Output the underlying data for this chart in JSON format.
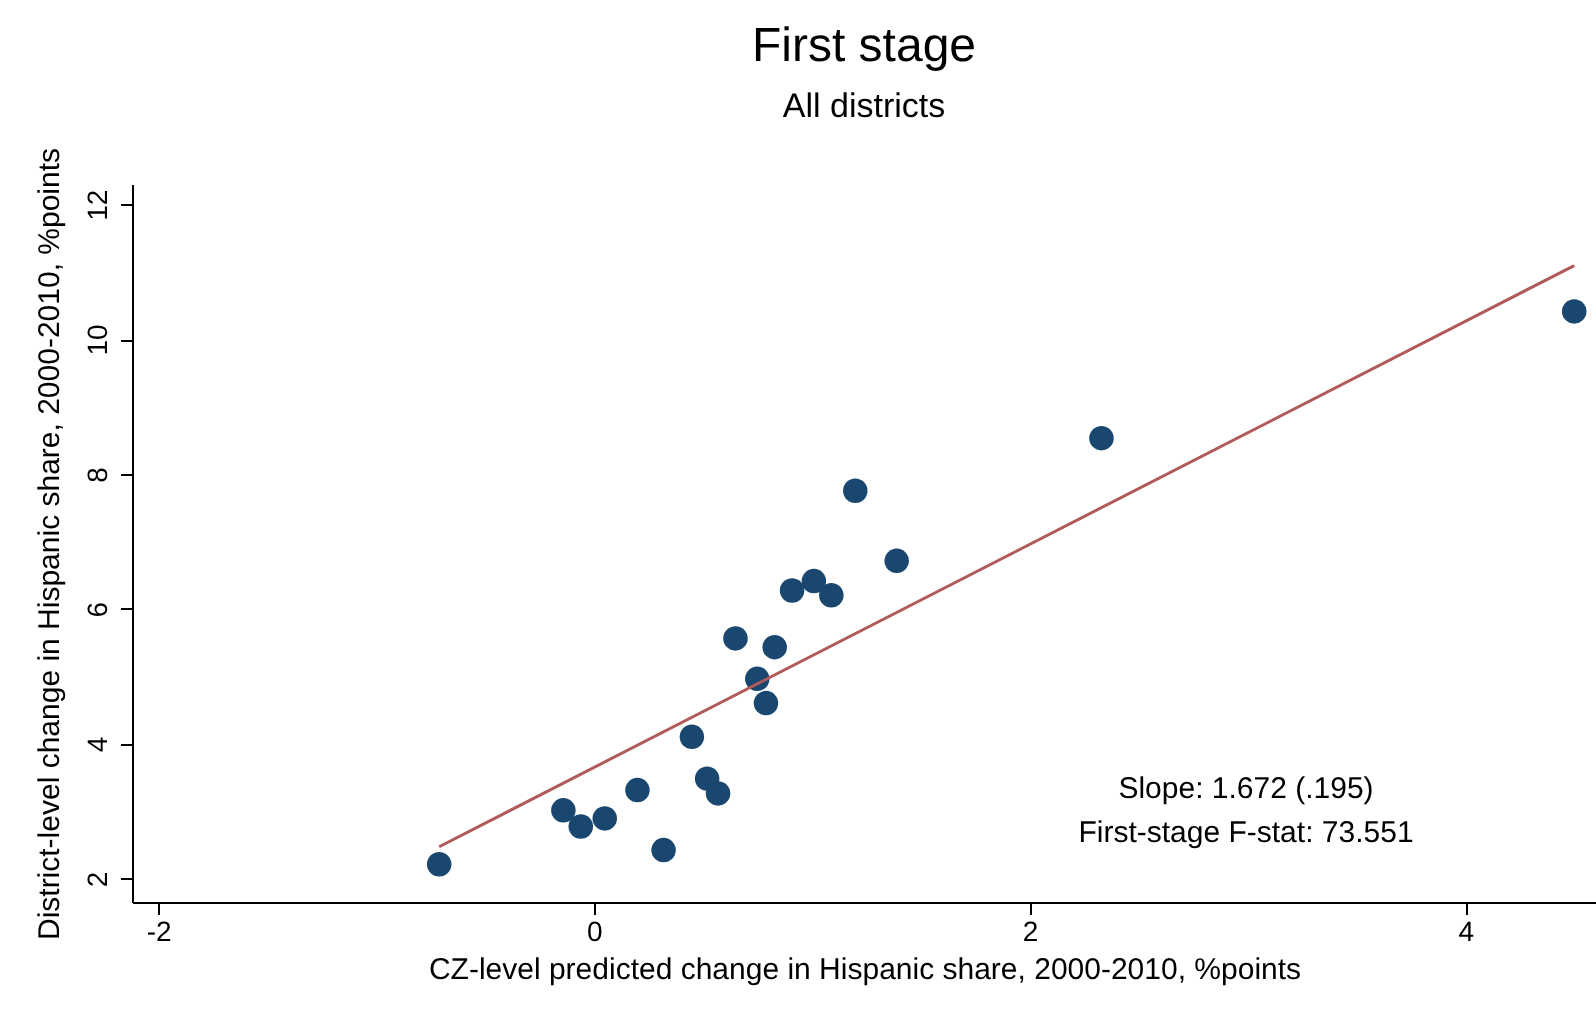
{
  "chart_data": {
    "type": "scatter",
    "title": "First stage",
    "subtitle": "All districts",
    "xlabel": "CZ-level predicted change in Hispanic share, 2000-2010, %points",
    "ylabel": "District-level change in Hispanic share, 2000-2010, %points",
    "xlim": [
      -2.12,
      4.6
    ],
    "ylim": [
      1.65,
      12.3
    ],
    "xticks": [
      -2,
      0,
      2,
      4
    ],
    "yticks": [
      2,
      4,
      6,
      8,
      10,
      12
    ],
    "grid": false,
    "annotations": [
      "Slope: 1.672 (.195)",
      "First-stage F-stat: 73.551"
    ],
    "series": [
      {
        "color": "#1a476f",
        "marker": "circle",
        "x": [
          -0.71,
          -0.14,
          -0.06,
          0.05,
          0.2,
          0.32,
          0.45,
          0.52,
          0.57,
          0.65,
          0.75,
          0.79,
          0.83,
          0.91,
          1.01,
          1.09,
          1.2,
          1.39,
          2.33,
          4.5
        ],
        "values": [
          2.21,
          3.01,
          2.77,
          2.89,
          3.31,
          2.42,
          4.1,
          3.48,
          3.26,
          5.56,
          4.96,
          4.6,
          5.43,
          6.27,
          6.41,
          6.2,
          7.75,
          6.71,
          8.53,
          10.41
        ]
      },
      {
        "type": "line",
        "color": "#b05a5a",
        "x": [
          -0.71,
          4.5
        ],
        "values": [
          2.47,
          11.09
        ],
        "line_style": "solid"
      }
    ]
  }
}
